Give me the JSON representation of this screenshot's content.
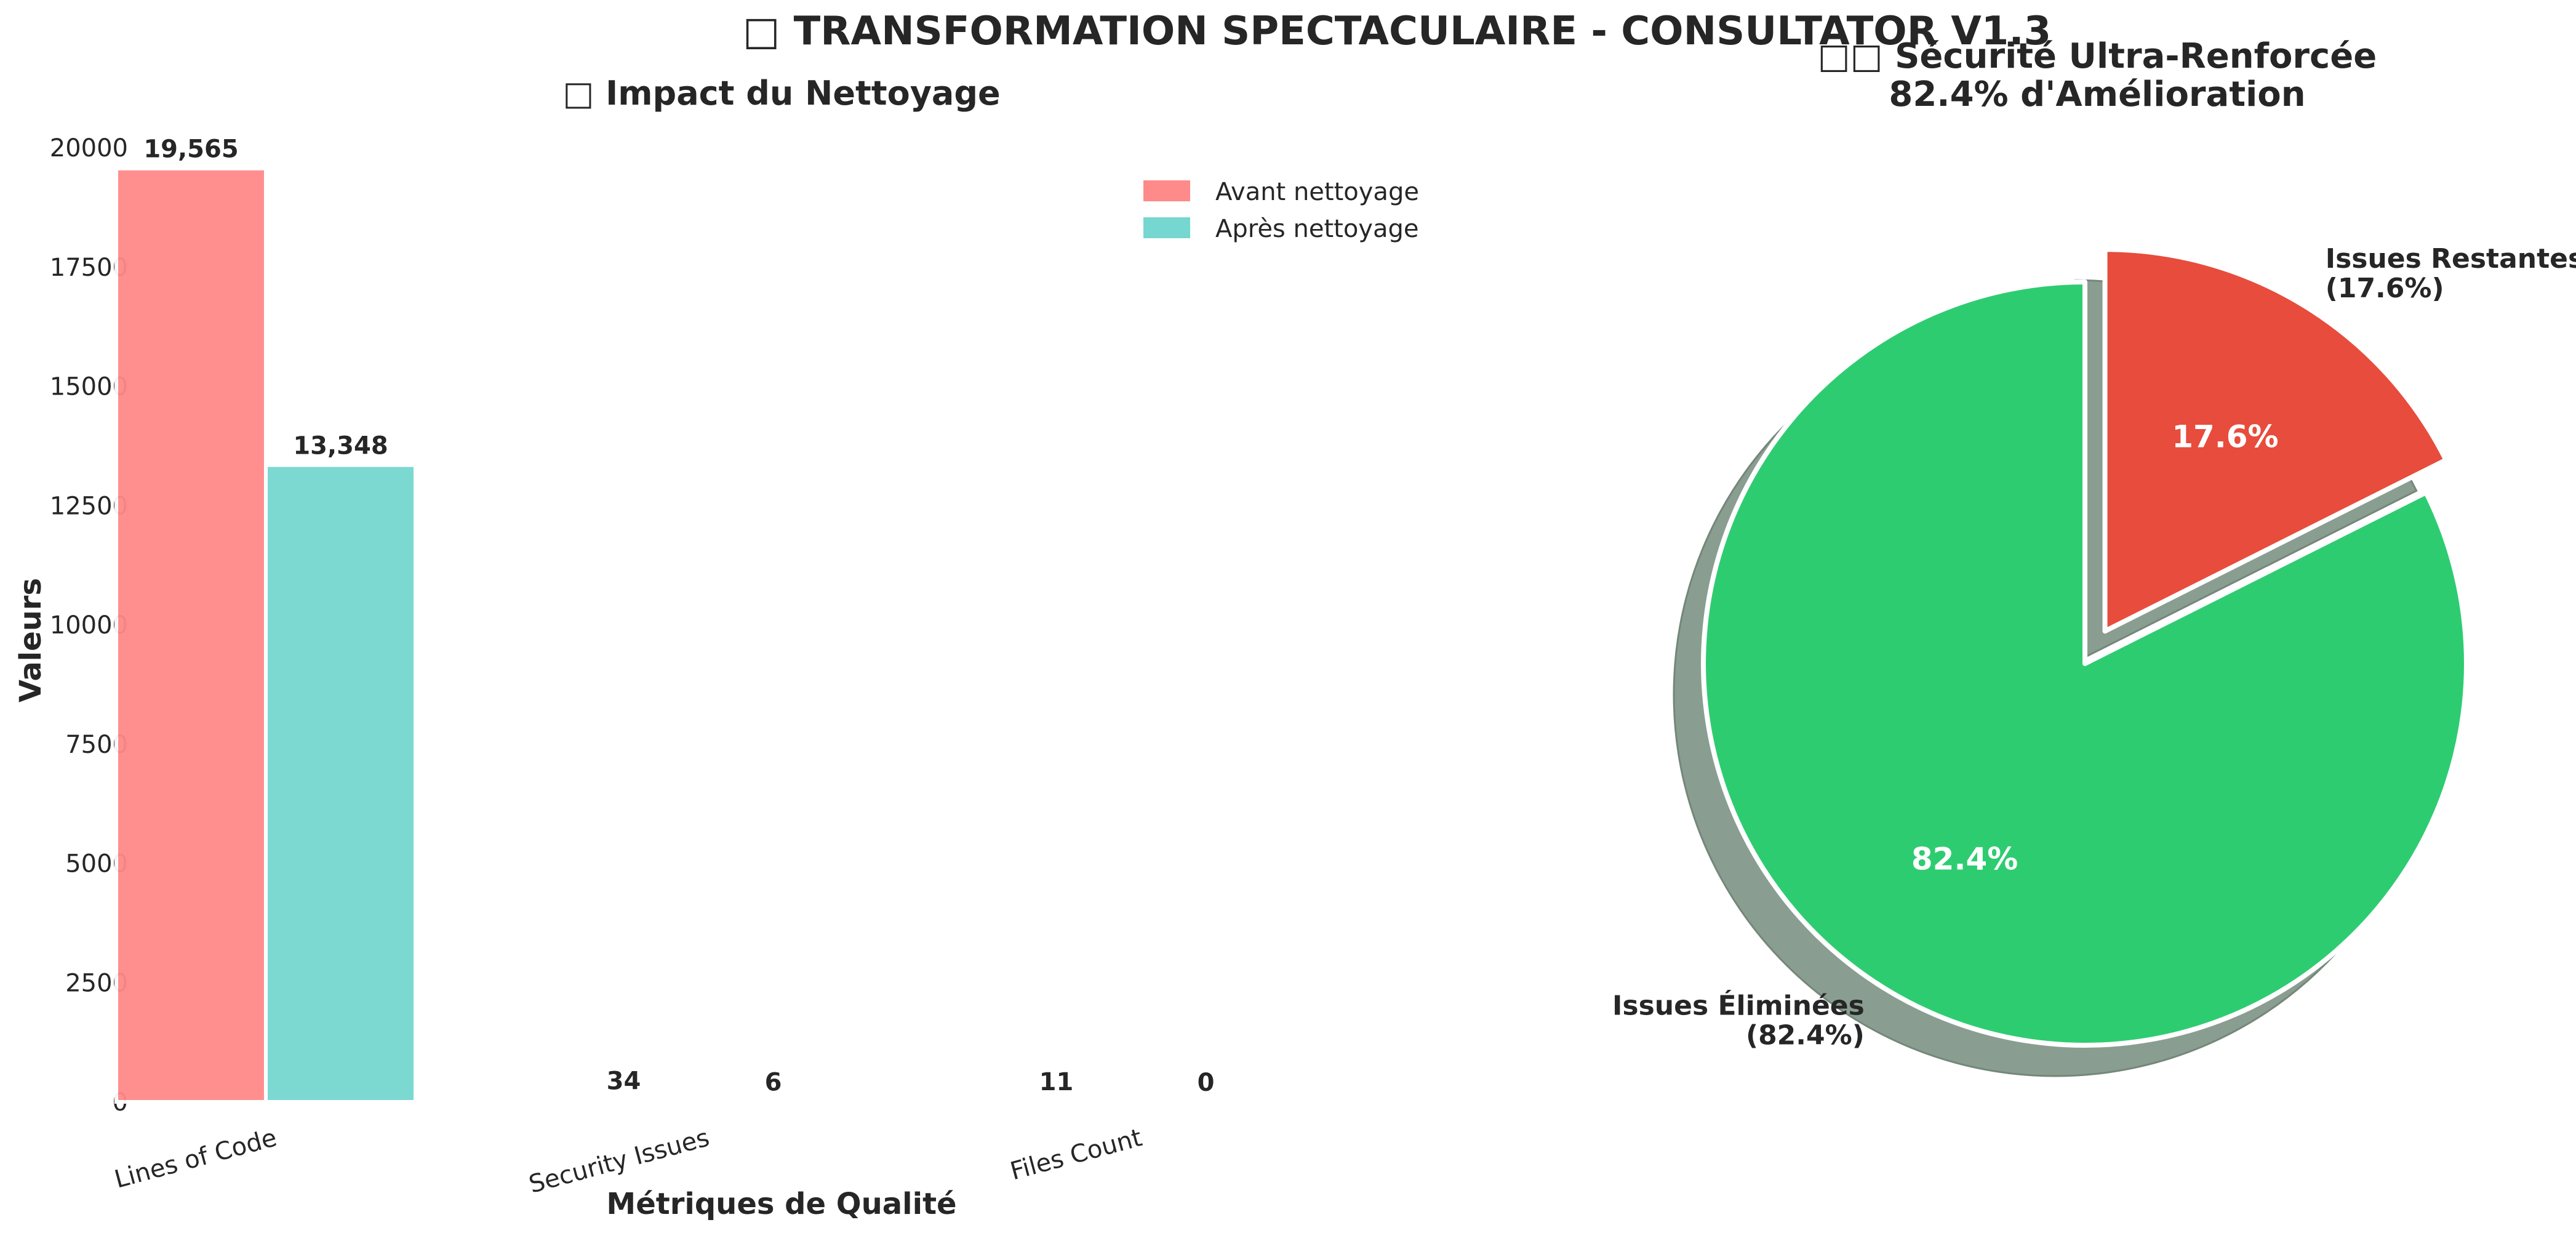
{
  "figure": {
    "suptitle": "□ TRANSFORMATION SPECTACULAIRE - CONSULTATOR V1.3"
  },
  "chart_data": [
    {
      "type": "bar",
      "title": "□ Impact du Nettoyage",
      "xlabel": "Métriques de Qualité",
      "ylabel": "Valeurs",
      "categories": [
        "Lines of Code",
        "Security Issues",
        "Files Count"
      ],
      "series": [
        {
          "name": "Avant nettoyage",
          "values": [
            19565,
            34,
            11
          ],
          "labels": [
            "19,565",
            "34",
            "11"
          ],
          "color": "#ff8a8a"
        },
        {
          "name": "Après nettoyage",
          "values": [
            13348,
            6,
            0
          ],
          "labels": [
            "13,348",
            "6",
            "0"
          ],
          "color": "#76d7d0"
        }
      ],
      "ylim": [
        0,
        20000
      ],
      "yticks": [
        0,
        2500,
        5000,
        7500,
        10000,
        12500,
        15000,
        17500,
        20000
      ],
      "grid": false,
      "legend_position": "upper right"
    },
    {
      "type": "pie",
      "title_lines": [
        "□□ Sécurité Ultra-Renforcée",
        "82.4% d'Amélioration"
      ],
      "slices": [
        {
          "label_lines": [
            "Issues Éliminées",
            "(82.4%)"
          ],
          "value": 82.4,
          "pct_label": "82.4%",
          "color": "#2ecc71",
          "explode": false
        },
        {
          "label_lines": [
            "Issues Restantes",
            "(17.6%)"
          ],
          "value": 17.6,
          "pct_label": "17.6%",
          "color": "#e74c3c",
          "explode": true
        }
      ],
      "start_angle": 90,
      "shadow": true
    }
  ]
}
